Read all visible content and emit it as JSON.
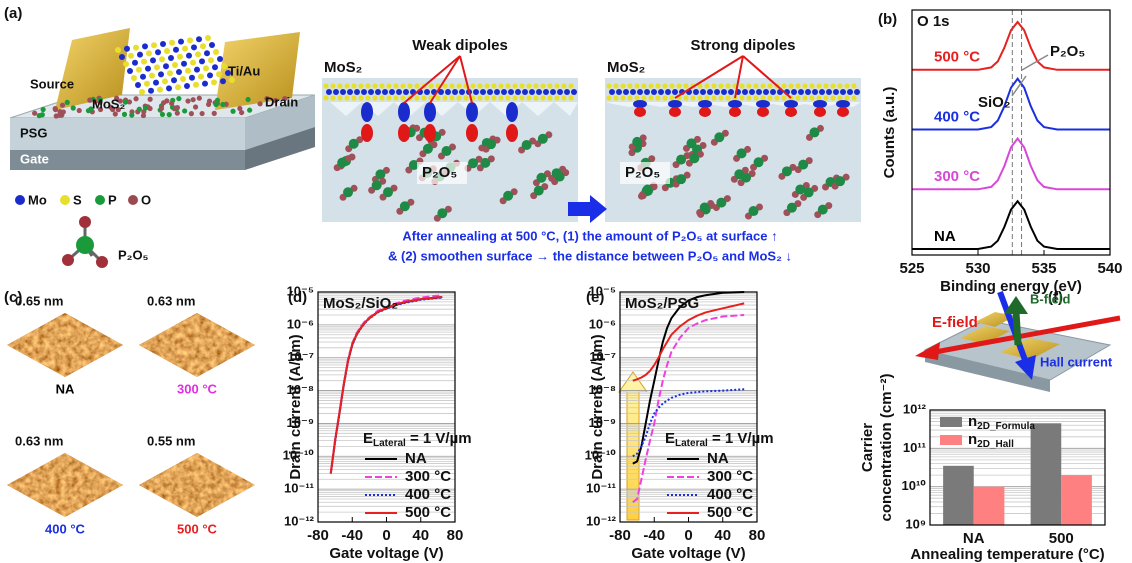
{
  "panel_a": {
    "label": "(a)",
    "device": {
      "source": "Source",
      "channel": "MoS₂",
      "contact": "Ti/Au",
      "drain": "Drain",
      "dielectric": "PSG",
      "gate": "Gate"
    },
    "atoms": [
      "Mo",
      "S",
      "P",
      "O"
    ],
    "molecule": "P₂O₅",
    "schematics": [
      {
        "material": "MoS₂",
        "title": "Weak dipoles",
        "molecule": "P₂O₅"
      },
      {
        "material": "MoS₂",
        "title": "Strong dipoles",
        "molecule": "P₂O₅"
      }
    ],
    "caption": [
      "After annealing at 500 °C, (1) the amount of P₂O₅ at surface ↑",
      "& (2) smoothen surface → the distance between P₂O₅ and MoS₂ ↓"
    ]
  },
  "panel_c": {
    "label": "(c)",
    "images": [
      {
        "roughness": "0.65 nm",
        "condition": "NA",
        "color": "#000000"
      },
      {
        "roughness": "0.63 nm",
        "condition": "300 °C",
        "color": "#e030e0"
      },
      {
        "roughness": "0.63 nm",
        "condition": "400 °C",
        "color": "#1a30e0"
      },
      {
        "roughness": "0.55 nm",
        "condition": "500 °C",
        "color": "#e82020"
      }
    ]
  },
  "chart_data": [
    {
      "type": "line",
      "panel_label": "(b)",
      "title": "O 1s",
      "xlabel": "Binding energy (eV)",
      "ylabel": "Counts (a.u.)",
      "x": [
        525,
        527,
        529,
        530,
        531,
        531.5,
        532,
        532.5,
        533,
        533.5,
        534,
        534.5,
        535,
        536,
        537,
        539,
        540
      ],
      "xlim": [
        525,
        540
      ],
      "xticks": [
        525,
        530,
        535,
        540
      ],
      "ylim": [
        0,
        4.1
      ],
      "reference_lines": [
        532.6,
        533.3
      ],
      "annotations": [
        "P₂O₅",
        "SiO₂"
      ],
      "series": [
        {
          "name": "NA",
          "color": "#000000",
          "values": [
            0.1,
            0.1,
            0.1,
            0.1,
            0.14,
            0.24,
            0.47,
            0.76,
            0.9,
            0.76,
            0.47,
            0.24,
            0.14,
            0.1,
            0.1,
            0.1,
            0.1
          ]
        },
        {
          "name": "300 °C",
          "color": "#d848d8",
          "values": [
            1.1,
            1.1,
            1.1,
            1.1,
            1.14,
            1.25,
            1.49,
            1.8,
            1.95,
            1.8,
            1.49,
            1.25,
            1.14,
            1.1,
            1.1,
            1.1,
            1.1
          ]
        },
        {
          "name": "400 °C",
          "color": "#1a30e0",
          "values": [
            2.1,
            2.1,
            2.1,
            2.1,
            2.14,
            2.25,
            2.49,
            2.8,
            2.95,
            2.8,
            2.49,
            2.25,
            2.14,
            2.1,
            2.1,
            2.1,
            2.1
          ]
        },
        {
          "name": "500 °C",
          "color": "#e82020",
          "values": [
            3.1,
            3.1,
            3.1,
            3.1,
            3.14,
            3.24,
            3.47,
            3.76,
            3.9,
            3.76,
            3.47,
            3.24,
            3.14,
            3.1,
            3.1,
            3.1,
            3.1
          ]
        }
      ]
    },
    {
      "type": "line",
      "panel_label": "(d)",
      "title": "MoS₂/SiO₂",
      "log_y": true,
      "grid": true,
      "legend": "lower right",
      "legend_title": {
        "text": "E",
        "sub": "Lateral",
        "rest": " = 1 V/µm"
      },
      "xlabel": "Gate voltage (V)",
      "ylabel": "Drain current (A/µm)",
      "x": [
        -65,
        -60,
        -55,
        -50,
        -45,
        -40,
        -35,
        -30,
        -25,
        -20,
        -10,
        0,
        10,
        20,
        40,
        65
      ],
      "xlim": [
        -80,
        80
      ],
      "xticks": [
        -80,
        -40,
        0,
        40,
        80
      ],
      "ylim": [
        1e-12,
        1e-05
      ],
      "yticks": [
        {
          "value": 1e-12,
          "label": "10⁻¹²"
        },
        {
          "value": 1e-11,
          "label": "10⁻¹¹"
        },
        {
          "value": 1e-10,
          "label": "10⁻¹⁰"
        },
        {
          "value": 1e-09,
          "label": "10⁻⁹"
        },
        {
          "value": 1e-08,
          "label": "10⁻⁸"
        },
        {
          "value": 1e-07,
          "label": "10⁻⁷"
        },
        {
          "value": 1e-06,
          "label": "10⁻⁶"
        },
        {
          "value": 1e-05,
          "label": "10⁻⁵"
        }
      ],
      "series": [
        {
          "name": "NA",
          "color": "#000000",
          "line_style": "solid",
          "values": [
            3e-11,
            3e-10,
            2e-09,
            1.5e-08,
            8e-08,
            2.5e-07,
            5e-07,
            8e-07,
            1.2e-06,
            1.6e-06,
            2.5e-06,
            3.2e-06,
            4e-06,
            4.8e-06,
            6e-06,
            7e-06
          ]
        },
        {
          "name": "300 °C",
          "color": "#f040e0",
          "line_style": "dashed",
          "values": [
            3.2e-11,
            3.2e-10,
            2.2e-09,
            1.6e-08,
            9e-08,
            2.8e-07,
            5.5e-07,
            9e-07,
            1.3e-06,
            1.7e-06,
            2.7e-06,
            3.5e-06,
            4.4e-06,
            5.3e-06,
            6.8e-06,
            8e-06
          ]
        },
        {
          "name": "400 °C",
          "color": "#1a30e0",
          "line_style": "dotted",
          "values": [
            3e-11,
            2.8e-10,
            1.9e-09,
            1.4e-08,
            7.5e-08,
            2.4e-07,
            4.8e-07,
            7.8e-07,
            1.15e-06,
            1.55e-06,
            2.4e-06,
            3.1e-06,
            3.9e-06,
            4.6e-06,
            5.8e-06,
            6.8e-06
          ]
        },
        {
          "name": "500 °C",
          "color": "#e82020",
          "line_style": "solid",
          "values": [
            3.1e-11,
            3e-10,
            2e-09,
            1.5e-08,
            8e-08,
            2.6e-07,
            5.1e-07,
            8.2e-07,
            1.2e-06,
            1.6e-06,
            2.5e-06,
            3.3e-06,
            4.1e-06,
            4.9e-06,
            6.1e-06,
            7.1e-06
          ]
        }
      ]
    },
    {
      "type": "line",
      "panel_label": "(e)",
      "title": "MoS₂/PSG",
      "log_y": true,
      "grid": true,
      "legend": "lower right",
      "legend_title": {
        "text": "E",
        "sub": "Lateral",
        "rest": " = 1 V/µm"
      },
      "xlabel": "Gate voltage (V)",
      "ylabel": "Drain current (A/µm)",
      "x": [
        -65,
        -60,
        -55,
        -50,
        -45,
        -40,
        -35,
        -30,
        -25,
        -20,
        -10,
        0,
        10,
        20,
        40,
        65
      ],
      "xlim": [
        -80,
        80
      ],
      "xticks": [
        -80,
        -40,
        0,
        40,
        80
      ],
      "ylim": [
        1e-12,
        1e-05
      ],
      "yticks": [
        {
          "value": 1e-12,
          "label": "10⁻¹²"
        },
        {
          "value": 1e-11,
          "label": "10⁻¹¹"
        },
        {
          "value": 1e-10,
          "label": "10⁻¹⁰"
        },
        {
          "value": 1e-09,
          "label": "10⁻⁹"
        },
        {
          "value": 1e-08,
          "label": "10⁻⁸"
        },
        {
          "value": 1e-07,
          "label": "10⁻⁷"
        },
        {
          "value": 1e-06,
          "label": "10⁻⁶"
        },
        {
          "value": 1e-05,
          "label": "10⁻⁵"
        }
      ],
      "series": [
        {
          "name": "NA",
          "color": "#000000",
          "line_style": "solid",
          "values": [
            6e-11,
            7e-11,
            2e-10,
            1e-09,
            5e-09,
            2e-08,
            8e-08,
            3e-07,
            8e-07,
            1.6e-06,
            3.5e-06,
            5.5e-06,
            7e-06,
            8e-06,
            9.5e-06,
            1e-05
          ]
        },
        {
          "name": "300 °C",
          "color": "#f040e0",
          "line_style": "dashed",
          "values": [
            4e-12,
            5e-12,
            2e-11,
            8e-11,
            3e-10,
            1e-09,
            5e-09,
            2e-08,
            6e-08,
            1.5e-07,
            4e-07,
            8e-07,
            1.1e-06,
            1.4e-06,
            1.8e-06,
            2e-06
          ]
        },
        {
          "name": "400 °C",
          "color": "#1a30e0",
          "line_style": "dotted",
          "values": [
            1e-10,
            1.2e-10,
            2e-10,
            4e-10,
            1e-09,
            2e-09,
            3e-09,
            4e-09,
            5e-09,
            6e-09,
            7.5e-09,
            8.5e-09,
            9e-09,
            9.5e-09,
            1e-08,
            1.1e-08
          ]
        },
        {
          "name": "500 °C",
          "color": "#e82020",
          "line_style": "solid",
          "values": [
            2e-08,
            2.2e-08,
            2.5e-08,
            3e-08,
            4e-08,
            6e-08,
            1e-07,
            1.8e-07,
            3e-07,
            5e-07,
            9e-07,
            1.4e-06,
            1.9e-06,
            2.4e-06,
            3.2e-06,
            4.5e-06
          ]
        }
      ]
    },
    {
      "type": "bar",
      "panel_label": "(f)",
      "log_y": true,
      "grid": true,
      "legend": "upper left",
      "illustration": {
        "e_field": "E-field",
        "b_field": "B-field",
        "current": "Hall current"
      },
      "xlabel": "Annealing temperature (°C)",
      "ylabel": [
        "Carrier",
        "concentration (cm⁻²)"
      ],
      "categories": [
        "NA",
        "500"
      ],
      "ylim": [
        1000000000.0,
        1000000000000.0
      ],
      "yticks": [
        {
          "value": 1000000000.0,
          "label": "10⁹"
        },
        {
          "value": 10000000000.0,
          "label": "10¹⁰"
        },
        {
          "value": 100000000000.0,
          "label": "10¹¹"
        },
        {
          "value": 1000000000000.0,
          "label": "10¹²"
        }
      ],
      "series": [
        {
          "name": "n",
          "name_sub": "2D_Formula",
          "color": "#7a7a7a",
          "values": [
            35000000000.0,
            450000000000.0
          ]
        },
        {
          "name": "n",
          "name_sub": "2D_Hall",
          "color": "#ff8080",
          "values": [
            10000000000.0,
            20000000000.0
          ]
        }
      ]
    }
  ]
}
